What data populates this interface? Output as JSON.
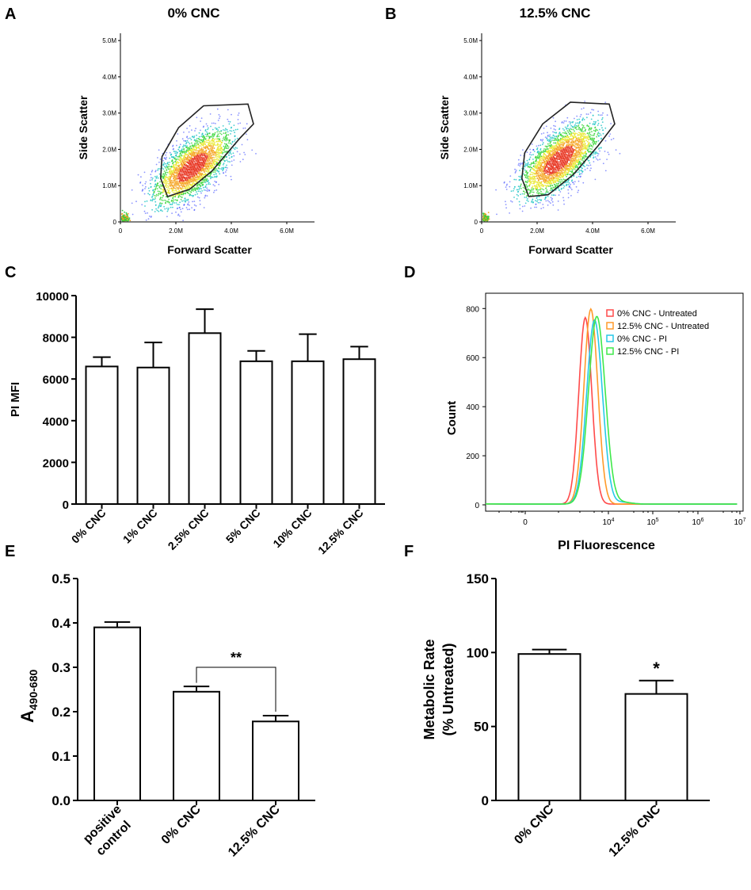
{
  "chart_data": [
    {
      "panel": "A",
      "type": "scatter",
      "title": "0% CNC",
      "xlabel": "Forward Scatter",
      "ylabel": "Side Scatter",
      "x_ticks": [
        "0",
        "2.0M",
        "4.0M",
        "6.0M"
      ],
      "y_ticks": [
        "0",
        "1.0M",
        "2.0M",
        "3.0M",
        "4.0M",
        "5.0M"
      ],
      "xlim": [
        0,
        7000000
      ],
      "ylim": [
        0,
        5200000
      ],
      "density_center": [
        2600000,
        1500000
      ],
      "gate_polygon": [
        [
          1700000,
          700000
        ],
        [
          1450000,
          1200000
        ],
        [
          1500000,
          1800000
        ],
        [
          2100000,
          2600000
        ],
        [
          3000000,
          3200000
        ],
        [
          4600000,
          3250000
        ],
        [
          4800000,
          2700000
        ],
        [
          4300000,
          2300000
        ],
        [
          3300000,
          1400000
        ],
        [
          2500000,
          900000
        ]
      ]
    },
    {
      "panel": "B",
      "type": "scatter",
      "title": "12.5% CNC",
      "xlabel": "Forward Scatter",
      "ylabel": "Side Scatter",
      "x_ticks": [
        "0",
        "2.0M",
        "4.0M",
        "6.0M"
      ],
      "y_ticks": [
        "0",
        "1.0M",
        "2.0M",
        "3.0M",
        "4.0M",
        "5.0M"
      ],
      "xlim": [
        0,
        7000000
      ],
      "ylim": [
        0,
        5200000
      ],
      "density_center": [
        2800000,
        1700000
      ],
      "gate_polygon": [
        [
          1700000,
          700000
        ],
        [
          1450000,
          1200000
        ],
        [
          1550000,
          1900000
        ],
        [
          2200000,
          2700000
        ],
        [
          3200000,
          3300000
        ],
        [
          4600000,
          3250000
        ],
        [
          4800000,
          2700000
        ],
        [
          4200000,
          2100000
        ],
        [
          3300000,
          1300000
        ],
        [
          2400000,
          750000
        ]
      ]
    },
    {
      "panel": "C",
      "type": "bar",
      "categories": [
        "0% CNC",
        "1% CNC",
        "2.5% CNC",
        "5% CNC",
        "10% CNC",
        "12.5% CNC"
      ],
      "values": [
        6600,
        6550,
        8200,
        6850,
        6850,
        6950
      ],
      "errors": [
        450,
        1200,
        1150,
        500,
        1300,
        600
      ],
      "ylabel": "PI MFI",
      "ylim": [
        0,
        10000
      ],
      "y_ticks": [
        "0",
        "2000",
        "4000",
        "6000",
        "8000",
        "10000"
      ]
    },
    {
      "panel": "D",
      "type": "line",
      "xlabel": "PI Fluorescence",
      "ylabel": "Count",
      "ylim": [
        0,
        830
      ],
      "y_ticks": [
        "0",
        "200",
        "400",
        "600",
        "800"
      ],
      "x_ticks": [
        "0",
        "10",
        "10",
        "10",
        "10"
      ],
      "x_tick_exponents": [
        "",
        "4",
        "5",
        "6",
        "7"
      ],
      "series": [
        {
          "name": "0% CNC - Untreated",
          "color": "#ff4a4a",
          "peak": 3.5,
          "height": 760,
          "width": 0.14
        },
        {
          "name": "12.5% CNC - Untreated",
          "color": "#ff9a2a",
          "peak": 3.62,
          "height": 795,
          "width": 0.15
        },
        {
          "name": "0% CNC - PI",
          "color": "#26c9e8",
          "peak": 3.7,
          "height": 750,
          "width": 0.17
        },
        {
          "name": "12.5% CNC - PI",
          "color": "#3fe84a",
          "peak": 3.75,
          "height": 765,
          "width": 0.18
        }
      ]
    },
    {
      "panel": "E",
      "type": "bar",
      "categories": [
        "positive control",
        "0% CNC",
        "12.5% CNC"
      ],
      "category_lines": [
        [
          "positive",
          "control"
        ],
        [
          "0% CNC"
        ],
        [
          "12.5% CNC"
        ]
      ],
      "values": [
        0.39,
        0.245,
        0.178
      ],
      "errors": [
        0.012,
        0.012,
        0.013
      ],
      "ylabel_main": "A",
      "ylabel_sub": "490-680",
      "ylim": [
        0,
        0.5
      ],
      "y_ticks": [
        "0.0",
        "0.1",
        "0.2",
        "0.3",
        "0.4",
        "0.5"
      ],
      "significance": "**"
    },
    {
      "panel": "F",
      "type": "bar",
      "categories": [
        "0% CNC",
        "12.5% CNC"
      ],
      "values": [
        99,
        72
      ],
      "errors": [
        3,
        9
      ],
      "ylabel_lines": [
        "Metabolic Rate",
        "(% Untreated)"
      ],
      "ylim": [
        0,
        150
      ],
      "y_ticks": [
        "0",
        "50",
        "100",
        "150"
      ],
      "significance": "*"
    }
  ]
}
